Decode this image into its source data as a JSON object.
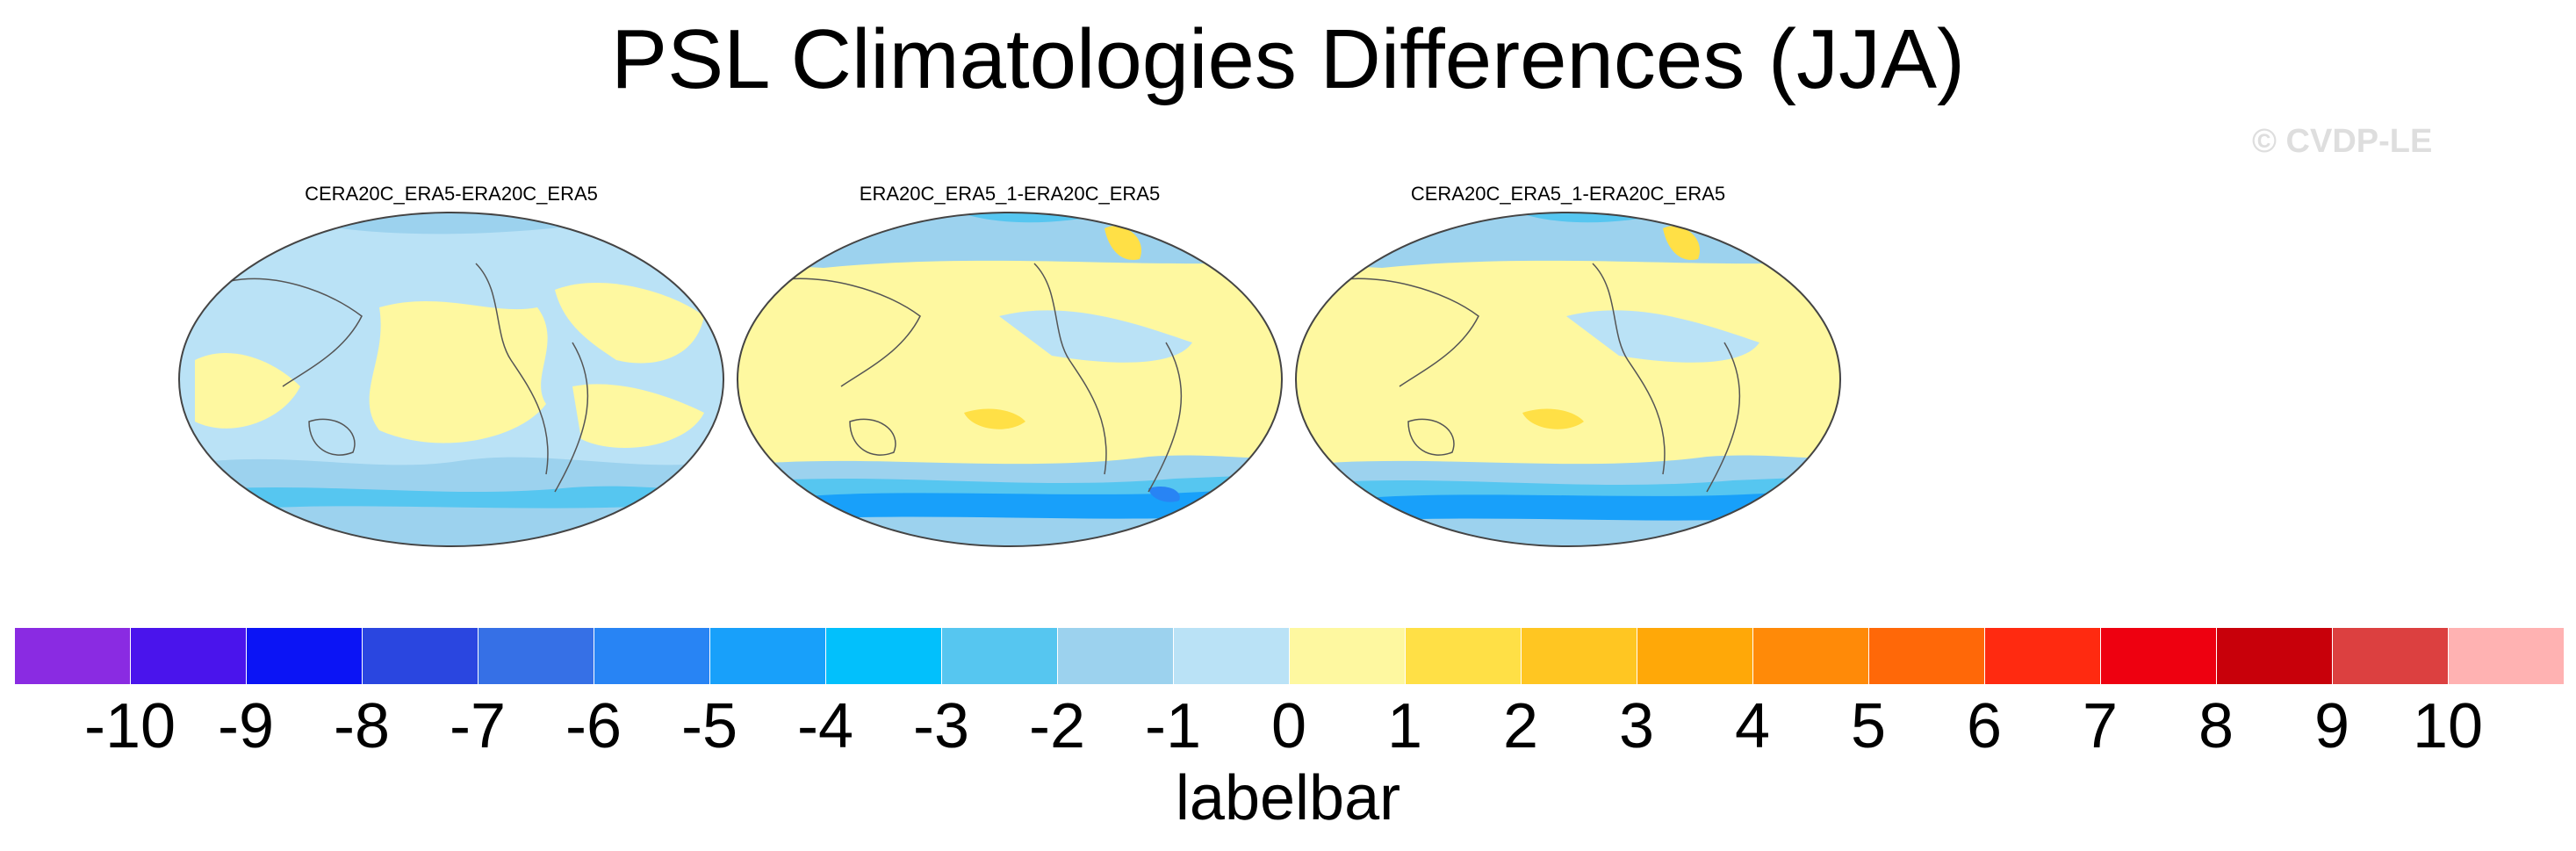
{
  "title": "PSL Climatologies Differences (JJA)",
  "watermark": "© CVDP-LE",
  "panels": [
    {
      "title": "CERA20C_ERA5-ERA20C_ERA5"
    },
    {
      "title": "ERA20C_ERA5_1-ERA20C_ERA5"
    },
    {
      "title": "CERA20C_ERA5_1-ERA20C_ERA5"
    }
  ],
  "labelbar": {
    "label": "labelbar",
    "colors": [
      "#8a2be2",
      "#4a14ec",
      "#0b14f5",
      "#2a46e0",
      "#3670e6",
      "#2884f4",
      "#18a0fa",
      "#02c0fc",
      "#56c6f0",
      "#9cd2ee",
      "#bae2f6",
      "#fef8a0",
      "#ffe046",
      "#ffc622",
      "#ffa808",
      "#ff8a08",
      "#ff6808",
      "#ff2a10",
      "#ee0010",
      "#c8000a",
      "#dc4040",
      "#ffb2b2"
    ],
    "ticks": [
      "-10",
      "-9",
      "-8",
      "-7",
      "-6",
      "-5",
      "-4",
      "-3",
      "-2",
      "-1",
      "0",
      "1",
      "2",
      "3",
      "4",
      "5",
      "6",
      "7",
      "8",
      "9",
      "10"
    ]
  }
}
